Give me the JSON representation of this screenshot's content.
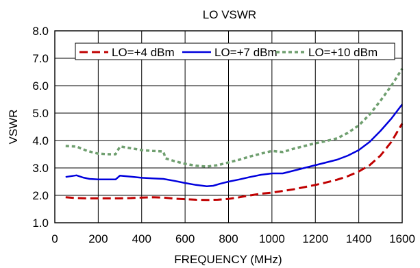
{
  "chart_data": {
    "type": "line",
    "title": "LO VSWR",
    "xlabel": "FREQUENCY (MHz)",
    "ylabel": "VSWR",
    "xlim": [
      0,
      1600
    ],
    "ylim": [
      1.0,
      8.0
    ],
    "xticks": [
      0,
      200,
      400,
      600,
      800,
      1000,
      1200,
      1400,
      1600
    ],
    "yticks": [
      1.0,
      2.0,
      3.0,
      4.0,
      5.0,
      6.0,
      7.0,
      8.0
    ],
    "ytick_labels": [
      "1.0",
      "2.0",
      "3.0",
      "4.0",
      "5.0",
      "6.0",
      "7.0",
      "8.0"
    ],
    "grid": true,
    "legend_position": "top-right",
    "series": [
      {
        "name": "LO=+4 dBm",
        "color": "#c00000",
        "style": "dashed",
        "x": [
          50,
          100,
          150,
          200,
          250,
          300,
          350,
          400,
          450,
          500,
          550,
          600,
          650,
          700,
          750,
          800,
          850,
          900,
          950,
          1000,
          1050,
          1100,
          1150,
          1200,
          1250,
          1300,
          1350,
          1400,
          1450,
          1500,
          1550,
          1600
        ],
        "y": [
          1.93,
          1.9,
          1.89,
          1.89,
          1.89,
          1.89,
          1.9,
          1.92,
          1.93,
          1.92,
          1.88,
          1.86,
          1.84,
          1.83,
          1.84,
          1.87,
          1.93,
          2.0,
          2.06,
          2.1,
          2.16,
          2.22,
          2.3,
          2.38,
          2.47,
          2.57,
          2.7,
          2.87,
          3.1,
          3.45,
          3.95,
          4.62
        ]
      },
      {
        "name": "LO=+7 dBm",
        "color": "#0000dd",
        "style": "solid",
        "x": [
          50,
          100,
          130,
          160,
          200,
          250,
          280,
          300,
          350,
          400,
          450,
          500,
          550,
          600,
          650,
          700,
          730,
          760,
          800,
          850,
          900,
          950,
          1000,
          1050,
          1100,
          1150,
          1200,
          1250,
          1300,
          1350,
          1400,
          1450,
          1500,
          1550,
          1600
        ],
        "y": [
          2.67,
          2.73,
          2.65,
          2.6,
          2.58,
          2.58,
          2.58,
          2.72,
          2.68,
          2.64,
          2.62,
          2.6,
          2.53,
          2.45,
          2.38,
          2.33,
          2.35,
          2.42,
          2.5,
          2.58,
          2.67,
          2.75,
          2.8,
          2.8,
          2.9,
          3.0,
          3.1,
          3.2,
          3.3,
          3.45,
          3.65,
          3.95,
          4.35,
          4.8,
          5.32
        ]
      },
      {
        "name": "LO=+10 dBm",
        "color": "#6f9f6f",
        "style": "dotted",
        "x": [
          50,
          100,
          150,
          200,
          250,
          280,
          300,
          350,
          400,
          450,
          500,
          510,
          550,
          600,
          650,
          700,
          750,
          800,
          850,
          900,
          950,
          1000,
          1050,
          1100,
          1150,
          1200,
          1250,
          1300,
          1350,
          1400,
          1450,
          1500,
          1550,
          1600
        ],
        "y": [
          3.8,
          3.78,
          3.62,
          3.52,
          3.5,
          3.5,
          3.78,
          3.72,
          3.65,
          3.62,
          3.6,
          3.35,
          3.25,
          3.15,
          3.08,
          3.05,
          3.1,
          3.2,
          3.3,
          3.42,
          3.52,
          3.62,
          3.58,
          3.7,
          3.8,
          3.9,
          3.98,
          4.08,
          4.28,
          4.55,
          4.95,
          5.45,
          6.0,
          6.62
        ]
      }
    ]
  }
}
